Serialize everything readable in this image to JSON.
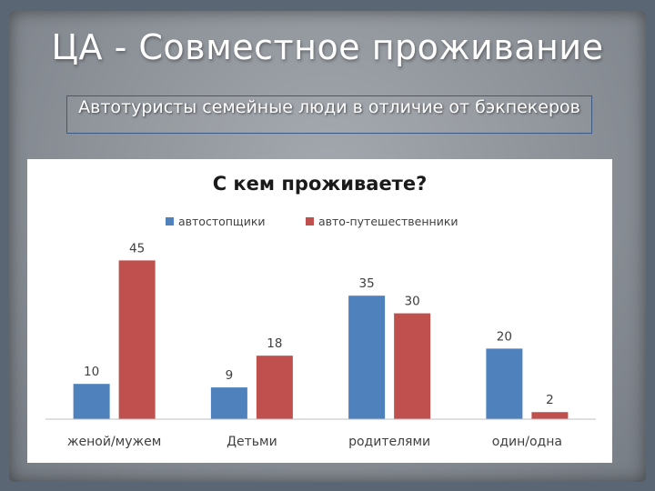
{
  "slide": {
    "title": "ЦА - Совместное проживание",
    "subtitle": "Автотуристы семейные люди в отличие от бэкпекеров"
  },
  "chart_data": {
    "type": "bar",
    "title": "С кем проживаете?",
    "categories": [
      "женой/мужем",
      "Детьми",
      "родителями",
      "один/одна"
    ],
    "series": [
      {
        "name": "автостопщики",
        "color": "#4f81bd",
        "values": [
          10,
          9,
          35,
          20
        ]
      },
      {
        "name": "авто-путешественники",
        "color": "#c0504d",
        "values": [
          45,
          18,
          30,
          2
        ]
      }
    ],
    "xlabel": "",
    "ylabel": "",
    "ylim": [
      0,
      50
    ],
    "grid": false,
    "legend_position": "top",
    "data_labels": true
  }
}
